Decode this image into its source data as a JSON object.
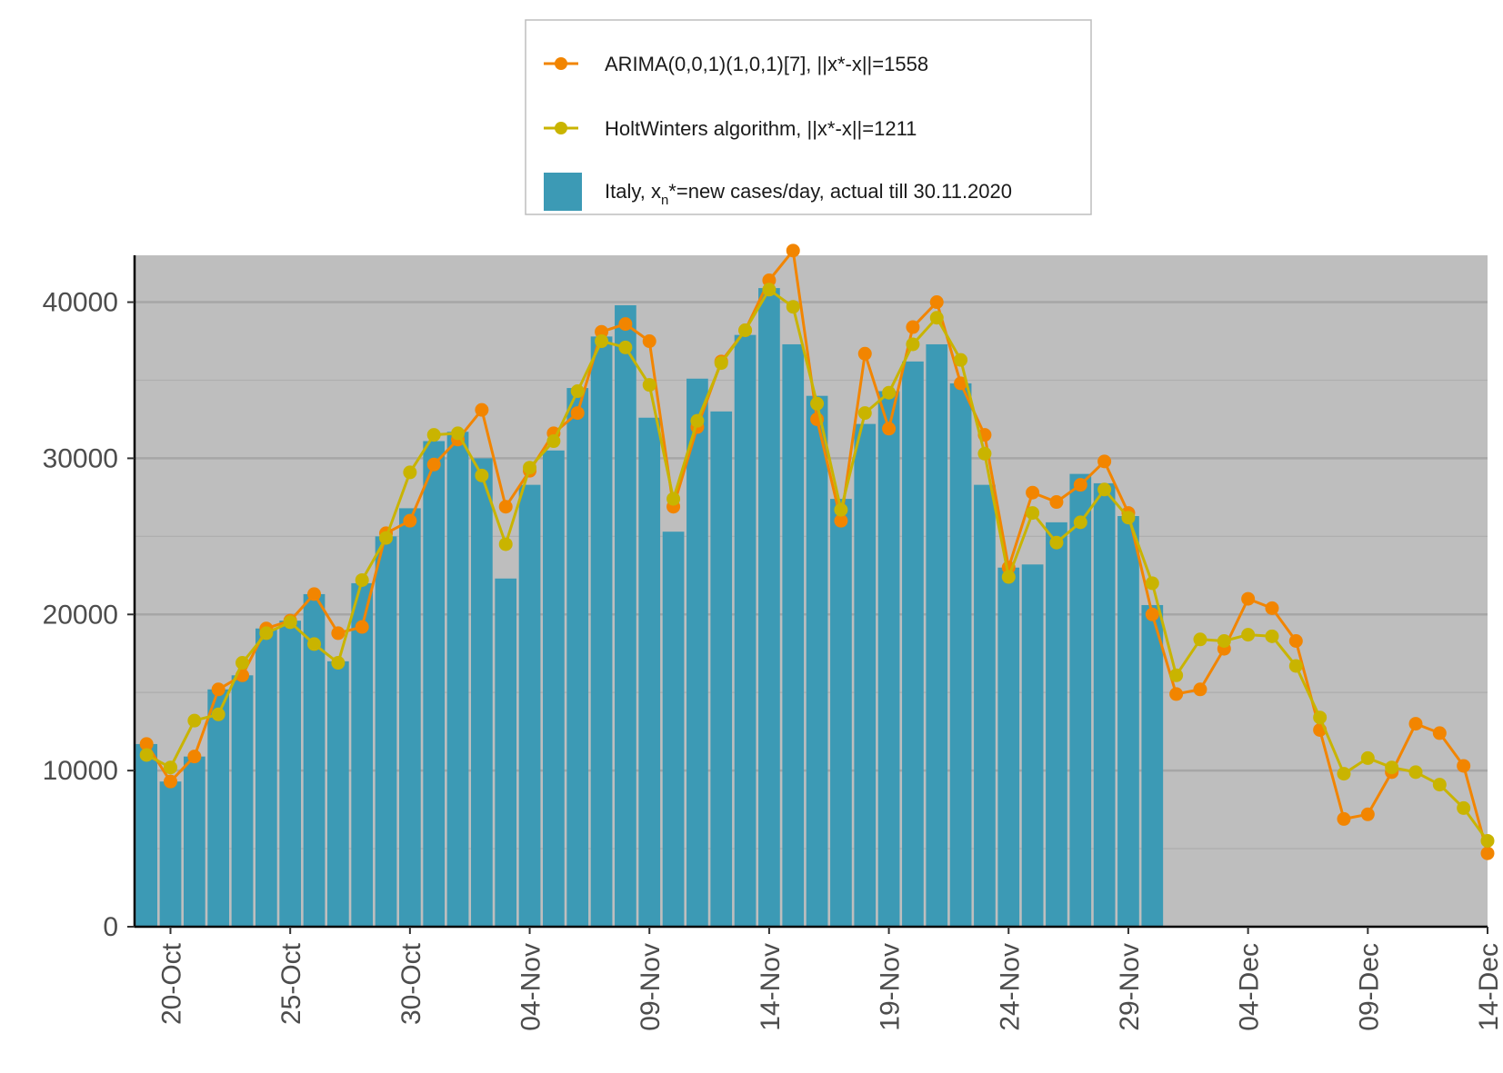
{
  "chart_data": {
    "type": "bar+line",
    "title": "",
    "xlabel": "",
    "ylabel": "",
    "ylim": [
      0,
      43000
    ],
    "y_ticks": [
      0,
      10000,
      20000,
      30000,
      40000
    ],
    "x_ticks": [
      "20-Oct",
      "25-Oct",
      "30-Oct",
      "04-Nov",
      "09-Nov",
      "14-Nov",
      "19-Nov",
      "24-Nov",
      "29-Nov",
      "04-Dec",
      "09-Dec",
      "14-Dec"
    ],
    "grid": true,
    "legend_position": "top",
    "bars": {
      "name_prefix": "Italy, x",
      "name_sub": "n",
      "name_suffix": "*=new cases/day, actual till 30.11.2020",
      "color": "#3C9AB5",
      "start_date": "2020-10-19",
      "values": [
        11700,
        9300,
        10900,
        15200,
        16100,
        19100,
        19600,
        21300,
        17000,
        22000,
        25000,
        26800,
        31100,
        31700,
        30000,
        22300,
        28300,
        30500,
        34500,
        37800,
        39800,
        32600,
        25300,
        35100,
        33000,
        37900,
        40900,
        37300,
        34000,
        27400,
        32200,
        34300,
        36200,
        37300,
        34800,
        28300,
        23000,
        23200,
        25900,
        29000,
        28400,
        26300,
        20600
      ]
    },
    "series": [
      {
        "name": "ARIMA(0,0,1)(1,0,1)[7], ||x*-x||=1558",
        "color": "#F28500",
        "start_date": "2020-10-19",
        "values": [
          11700,
          9300,
          10900,
          15200,
          16100,
          19100,
          19600,
          21300,
          18800,
          19200,
          25200,
          26000,
          29600,
          31200,
          33100,
          26900,
          29200,
          31600,
          32900,
          38100,
          38600,
          37500,
          26900,
          32000,
          36200,
          38200,
          41400,
          43300,
          32500,
          26000,
          36700,
          31900,
          38400,
          40000,
          34800,
          31500,
          23000,
          27800,
          27200,
          28300,
          29800,
          26500,
          20000,
          14900,
          15200,
          17800,
          21000,
          20400,
          18300,
          12600,
          6900,
          7200,
          9900,
          13000,
          12400,
          10300,
          4700
        ]
      },
      {
        "name": "HoltWinters algorithm,  ||x*-x||=1211",
        "color": "#C9B400",
        "start_date": "2020-10-19",
        "values": [
          11000,
          10200,
          13200,
          13600,
          16900,
          18800,
          19500,
          18100,
          16900,
          22200,
          24900,
          29100,
          31500,
          31600,
          28900,
          24500,
          29400,
          31100,
          34300,
          37500,
          37100,
          34700,
          27400,
          32400,
          36100,
          38200,
          40800,
          39700,
          33500,
          26700,
          32900,
          34200,
          37300,
          39000,
          36300,
          30300,
          22400,
          26500,
          24600,
          25900,
          28000,
          26200,
          22000,
          16100,
          18400,
          18300,
          18700,
          18600,
          16700,
          13400,
          9800,
          10800,
          10200,
          9900,
          9100,
          7600,
          5500
        ]
      }
    ]
  },
  "legend": {
    "items": [
      {
        "label": "ARIMA(0,0,1)(1,0,1)[7], ||x*-x||=1558",
        "color": "#F28500"
      },
      {
        "label": "HoltWinters algorithm,  ||x*-x||=1211",
        "color": "#C9B400"
      },
      {
        "label_prefix": "Italy, x",
        "label_sub": "n",
        "label_suffix": "*=new cases/day, actual till 30.11.2020",
        "color": "#3C9AB5"
      }
    ]
  }
}
